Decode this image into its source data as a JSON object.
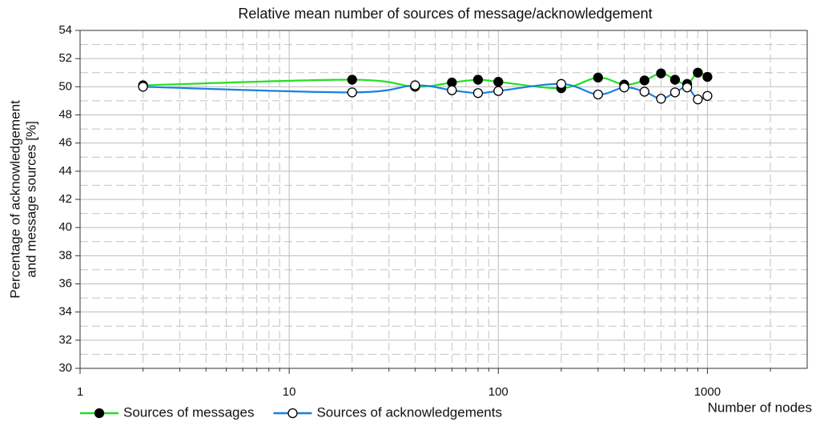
{
  "chart_data": {
    "type": "line",
    "title": "Relative mean number of sources of message/acknowledgement",
    "xlabel": "Number of nodes",
    "ylabel": [
      "Percentage of acknowledgement",
      "and message sources [%]"
    ],
    "x": [
      2,
      20,
      40,
      60,
      80,
      100,
      200,
      300,
      400,
      500,
      600,
      700,
      800,
      900,
      1000
    ],
    "series": [
      {
        "name": "Sources of messages",
        "color": "#22e022",
        "marker": "filled",
        "values": [
          50.1,
          50.5,
          50.0,
          50.3,
          50.5,
          50.35,
          49.9,
          50.65,
          50.15,
          50.45,
          50.95,
          50.5,
          50.2,
          51.0,
          50.7
        ]
      },
      {
        "name": "Sources of acknowledgements",
        "color": "#1a7fe0",
        "marker": "open",
        "values": [
          50.0,
          49.6,
          50.1,
          49.75,
          49.55,
          49.7,
          50.2,
          49.45,
          49.95,
          49.65,
          49.15,
          49.6,
          49.95,
          49.1,
          49.35
        ]
      }
    ],
    "xscale": "log",
    "xlim": [
      1,
      3000
    ],
    "xticks": [
      1,
      10,
      100,
      1000
    ],
    "ylim": [
      30,
      54
    ],
    "yticks": [
      30,
      32,
      34,
      36,
      38,
      40,
      42,
      44,
      46,
      48,
      50,
      52,
      54
    ],
    "grid": true,
    "legend": "bottom-left"
  }
}
